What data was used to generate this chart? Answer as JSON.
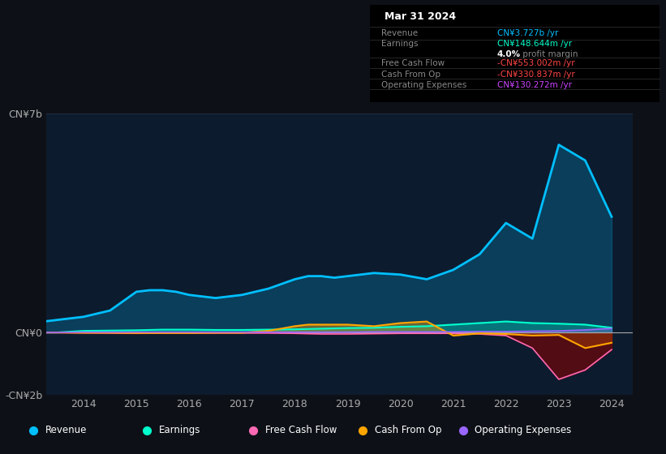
{
  "background_color": "#0d1117",
  "chart_bg": "#0d1b2e",
  "ylim": [
    -2000000000,
    7000000000
  ],
  "ytick_labels": [
    "-CN¥2b",
    "CN¥0",
    "CN¥7b"
  ],
  "ytick_vals": [
    -2000000000,
    0,
    7000000000
  ],
  "xticks": [
    2014,
    2015,
    2016,
    2017,
    2018,
    2019,
    2020,
    2021,
    2022,
    2023,
    2024
  ],
  "legend": [
    {
      "label": "Revenue",
      "color": "#00bfff"
    },
    {
      "label": "Earnings",
      "color": "#00ffcc"
    },
    {
      "label": "Free Cash Flow",
      "color": "#ff69b4"
    },
    {
      "label": "Cash From Op",
      "color": "#ffa500"
    },
    {
      "label": "Operating Expenses",
      "color": "#9966ff"
    }
  ],
  "series": {
    "years": [
      2013.0,
      2013.5,
      2014.0,
      2014.5,
      2015.0,
      2015.25,
      2015.5,
      2015.75,
      2016.0,
      2016.5,
      2017.0,
      2017.5,
      2018.0,
      2018.25,
      2018.5,
      2018.75,
      2019.0,
      2019.5,
      2020.0,
      2020.5,
      2021.0,
      2021.5,
      2022.0,
      2022.5,
      2023.0,
      2023.5,
      2024.0
    ],
    "revenue": [
      300000000.0,
      400000000.0,
      500000000.0,
      700000000.0,
      1300000000.0,
      1350000000.0,
      1350000000.0,
      1300000000.0,
      1200000000.0,
      1100000000.0,
      1200000000.0,
      1400000000.0,
      1700000000.0,
      1800000000.0,
      1800000000.0,
      1750000000.0,
      1800000000.0,
      1900000000.0,
      1850000000.0,
      1700000000.0,
      2000000000.0,
      2500000000.0,
      3500000000.0,
      3000000000.0,
      6000000000.0,
      5500000000.0,
      3700000000.0
    ],
    "earnings": [
      0,
      0,
      50000000.0,
      60000000.0,
      70000000.0,
      80000000.0,
      90000000.0,
      90000000.0,
      90000000.0,
      80000000.0,
      80000000.0,
      90000000.0,
      100000000.0,
      110000000.0,
      120000000.0,
      130000000.0,
      140000000.0,
      150000000.0,
      180000000.0,
      200000000.0,
      250000000.0,
      300000000.0,
      350000000.0,
      300000000.0,
      280000000.0,
      250000000.0,
      150000000.0
    ],
    "free_cash": [
      0,
      0,
      -10000000.0,
      -20000000.0,
      -30000000.0,
      -20000000.0,
      -20000000.0,
      -20000000.0,
      -20000000.0,
      -20000000.0,
      -20000000.0,
      -20000000.0,
      -30000000.0,
      -40000000.0,
      -50000000.0,
      -50000000.0,
      -50000000.0,
      -40000000.0,
      -30000000.0,
      -30000000.0,
      -30000000.0,
      -50000000.0,
      -100000000.0,
      -500000000.0,
      -1500000000.0,
      -1200000000.0,
      -550000000.0
    ],
    "cash_op": [
      0,
      0,
      -10000000.0,
      -10000000.0,
      -20000000.0,
      -20000000.0,
      -20000000.0,
      -20000000.0,
      -20000000.0,
      -10000000.0,
      -10000000.0,
      50000000.0,
      200000000.0,
      250000000.0,
      250000000.0,
      250000000.0,
      250000000.0,
      200000000.0,
      300000000.0,
      350000000.0,
      -100000000.0,
      -30000000.0,
      -50000000.0,
      -100000000.0,
      -80000000.0,
      -500000000.0,
      -330000000.0
    ],
    "op_exp": [
      0,
      0,
      10000000.0,
      10000000.0,
      10000000.0,
      10000000.0,
      10000000.0,
      10000000.0,
      10000000.0,
      10000000.0,
      10000000.0,
      10000000.0,
      10000000.0,
      10000000.0,
      10000000.0,
      10000000.0,
      10000000.0,
      20000000.0,
      20000000.0,
      20000000.0,
      20000000.0,
      30000000.0,
      30000000.0,
      40000000.0,
      50000000.0,
      80000000.0,
      130000000.0
    ]
  },
  "info_rows": [
    {
      "label": "Revenue",
      "value": "CN¥3.727b /yr",
      "value_color": "#00bfff"
    },
    {
      "label": "Earnings",
      "value": "CN¥148.644m /yr",
      "value_color": "#00ffcc"
    },
    {
      "label": "",
      "value": "",
      "value_color": "#ffffff",
      "bold_text": "4.0%",
      "plain_text": " profit margin"
    },
    {
      "label": "Free Cash Flow",
      "value": "-CN¥553.002m /yr",
      "value_color": "#ff4444"
    },
    {
      "label": "Cash From Op",
      "value": "-CN¥330.837m /yr",
      "value_color": "#ff4444"
    },
    {
      "label": "Operating Expenses",
      "value": "CN¥130.272m /yr",
      "value_color": "#cc44ff"
    }
  ]
}
